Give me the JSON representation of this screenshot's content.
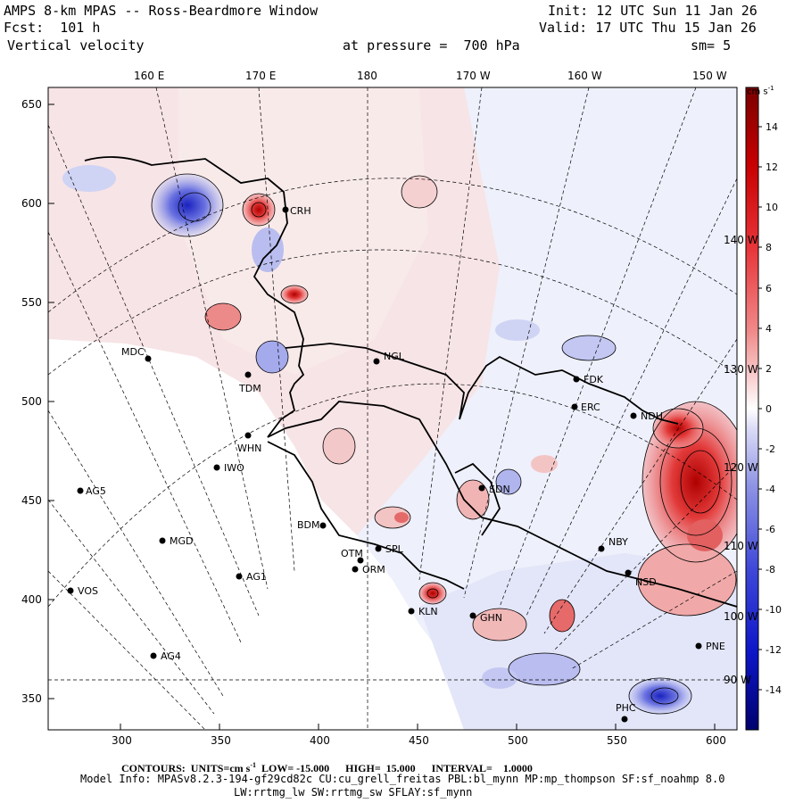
{
  "header": {
    "title": "AMPS 8-km MPAS -- Ross-Beardmore Window",
    "init": "Init: 12 UTC Sun 11 Jan 26",
    "fcst": "Fcst:  101 h",
    "valid": "Valid: 17 UTC Thu 15 Jan 26",
    "field": "Vertical velocity",
    "pressure": "at pressure =  700 hPa",
    "smoothing": "sm= 5"
  },
  "footer": {
    "contours_label": "CONTOURS:",
    "units": "UNITS=cm s",
    "units_exp": "-1",
    "low": "LOW= -15.000",
    "high": "HIGH=  15.000",
    "interval": "INTERVAL=    1.0000",
    "model_info": "Model Info: MPASv8.2.3-194-gf29cd82c CU:cu_grell_freitas PBL:bl_mynn MP:mp_thompson SF:sf_noahmp 8.0",
    "model_info2": "LW:rrtmg_lw SW:rrtmg_sw SFLAY:sf_mynn"
  },
  "axes": {
    "x_ticks": [
      "300",
      "350",
      "400",
      "450",
      "500",
      "550",
      "600"
    ],
    "y_ticks": [
      "650",
      "600",
      "550",
      "500",
      "450",
      "400",
      "350"
    ],
    "lon_labels": [
      "160 E",
      "170 E",
      "180",
      "170 W",
      "160 W",
      "150 W"
    ],
    "right_lon_labels": [
      "140 W",
      "130 W",
      "120 W",
      "110 W",
      "100 W",
      "90 W"
    ]
  },
  "colorbar": {
    "units": "cm s",
    "units_exp": "-1",
    "labels": [
      "14",
      "12",
      "10",
      "8",
      "6",
      "4",
      "2",
      "0",
      "-2",
      "-4",
      "-6",
      "-8",
      "-10",
      "-12",
      "-14"
    ],
    "min": -15,
    "max": 15,
    "colors": {
      "red_max": "#8b0000",
      "red_mid": "#e8353a",
      "red_light": "#f6c3c3",
      "white": "#ffffff",
      "blue_light": "#c7c9f1",
      "blue_mid": "#3f48d8",
      "blue_max": "#00008b"
    }
  },
  "stations": [
    {
      "name": "CRH"
    },
    {
      "name": "MDC"
    },
    {
      "name": "TDM"
    },
    {
      "name": "NGL"
    },
    {
      "name": "FDK"
    },
    {
      "name": "ERC"
    },
    {
      "name": "NDH"
    },
    {
      "name": "WHN"
    },
    {
      "name": "IWO"
    },
    {
      "name": "AG5"
    },
    {
      "name": "SDN"
    },
    {
      "name": "BDM"
    },
    {
      "name": "MGD"
    },
    {
      "name": "SPL"
    },
    {
      "name": "OTM"
    },
    {
      "name": "ORM"
    },
    {
      "name": "AG1"
    },
    {
      "name": "NBY"
    },
    {
      "name": "NSD"
    },
    {
      "name": "VOS"
    },
    {
      "name": "KLN"
    },
    {
      "name": "GHN"
    },
    {
      "name": "AG4"
    },
    {
      "name": "PNE"
    },
    {
      "name": "PHC"
    }
  ]
}
